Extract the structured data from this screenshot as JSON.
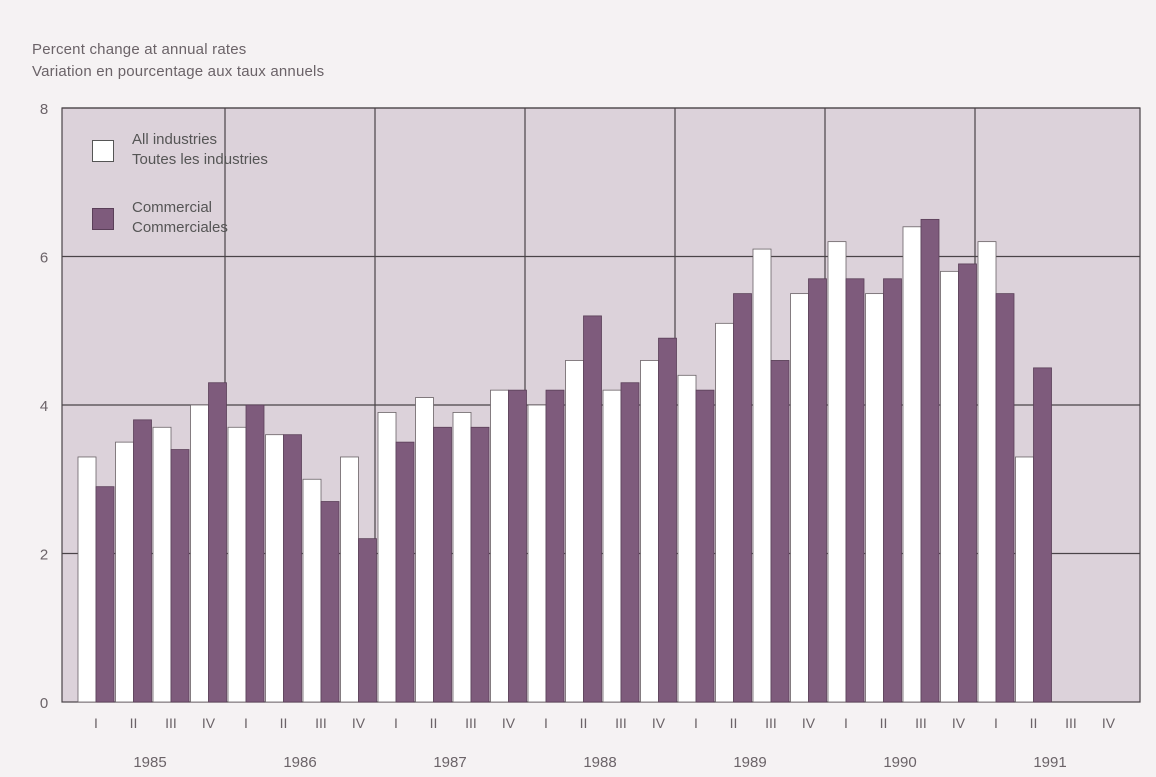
{
  "chart_data": {
    "type": "bar",
    "ylabel_lines": [
      "Percent change at annual rates",
      "Variation en pourcentage aux taux annuels"
    ],
    "ylim": [
      0,
      8
    ],
    "yticks": [
      "0",
      "2",
      "4",
      "6",
      "8"
    ],
    "grid": true,
    "legend_placement": "top-left",
    "legend": [
      {
        "lines": [
          "All industries",
          "Toutes les industries"
        ],
        "color": "#ffffff"
      },
      {
        "lines": [
          "Commercial",
          "Commerciales"
        ],
        "color": "#7e5b7c"
      }
    ],
    "quarters": [
      "I",
      "II",
      "III",
      "IV",
      "I",
      "II",
      "III",
      "IV",
      "I",
      "II",
      "III",
      "IV",
      "I",
      "II",
      "III",
      "IV",
      "I",
      "II",
      "III",
      "IV",
      "I",
      "II",
      "III",
      "IV",
      "I",
      "II",
      "III",
      "IV"
    ],
    "years": [
      "1985",
      "1986",
      "1987",
      "1988",
      "1989",
      "1990",
      "1991"
    ],
    "series": [
      {
        "name": "All industries",
        "color": "#ffffff",
        "values": [
          3.3,
          3.5,
          3.7,
          4.0,
          3.7,
          3.6,
          3.0,
          3.3,
          3.9,
          4.1,
          3.9,
          4.2,
          4.0,
          4.6,
          4.2,
          4.6,
          4.4,
          5.1,
          6.1,
          5.5,
          6.2,
          5.5,
          6.4,
          5.8,
          6.2,
          3.3,
          null,
          null
        ]
      },
      {
        "name": "Commercial",
        "color": "#7e5b7c",
        "values": [
          2.9,
          3.8,
          3.4,
          4.3,
          4.0,
          3.6,
          2.7,
          2.2,
          3.5,
          3.7,
          3.7,
          4.2,
          4.2,
          5.2,
          4.3,
          4.9,
          4.2,
          5.5,
          4.6,
          5.7,
          5.7,
          5.7,
          6.5,
          5.9,
          5.5,
          4.5,
          null,
          null
        ]
      }
    ],
    "colors": {
      "plot_bg": "#dcd2da",
      "grid": "#4a4448",
      "axis_text": "#6b6368"
    }
  }
}
